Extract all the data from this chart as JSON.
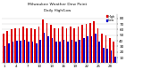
{
  "title": "Milwaukee Weather Dew Point",
  "subtitle": "Daily High/Low",
  "high_values": [
    52,
    58,
    60,
    62,
    62,
    65,
    62,
    62,
    60,
    65,
    78,
    72,
    68,
    62,
    62,
    65,
    62,
    65,
    62,
    65,
    68,
    70,
    72,
    75,
    62,
    52,
    50,
    45,
    38
  ],
  "low_values": [
    30,
    36,
    38,
    40,
    40,
    42,
    38,
    38,
    36,
    42,
    55,
    48,
    45,
    38,
    38,
    42,
    38,
    42,
    38,
    42,
    45,
    48,
    48,
    52,
    38,
    28,
    26,
    22,
    12
  ],
  "bar_width": 0.38,
  "high_color": "#dd0000",
  "low_color": "#0000cc",
  "bg_color": "#ffffff",
  "plot_bg": "#ffffff",
  "yticks": [
    10,
    20,
    30,
    40,
    50,
    60,
    70,
    80
  ],
  "ylim": [
    0,
    88
  ],
  "grid_color": "#cccccc",
  "legend_high": "High",
  "legend_low": "Low",
  "legend_high_color": "#dd0000",
  "legend_low_color": "#0000cc"
}
